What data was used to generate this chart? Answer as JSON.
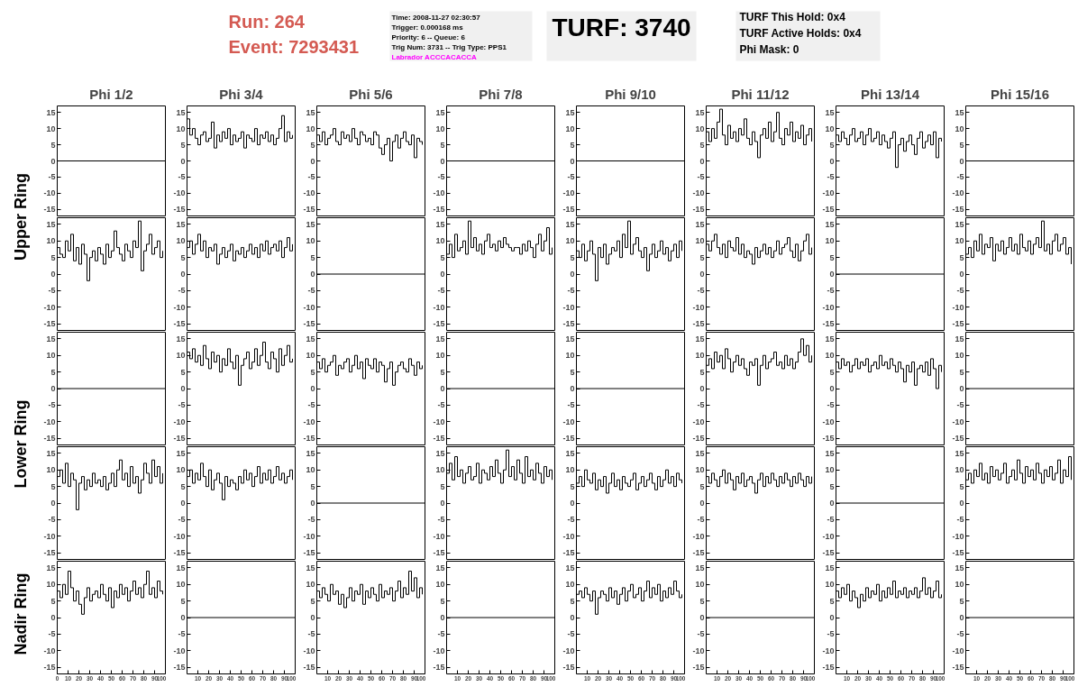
{
  "chart_data": [
    {
      "type": "step",
      "title": "Phi 1/2",
      "annotations": [
        "Run:    264",
        "Event: 7293431",
        "Time: 2008-11-27 02:30:57",
        "Trigger: 0.000168 ms",
        "Priority: 6 -- Queue: 6",
        "Trig Num: 3731 -- Trig Type: PPS1",
        "Labrador ACCCACACCA",
        "TURF: 3740",
        "TURF This Hold: 0x4",
        "TURF Active Holds: 0x4",
        "Phi Mask: 0",
        "Upper Ring",
        "Lower Ring",
        "Nadir Ring"
      ],
      "x": [
        0,
        100
      ],
      "values": [
        0,
        0
      ],
      "color": "#000000",
      "xlim": [
        0,
        100
      ],
      "ylim": [
        -17,
        17
      ],
      "yticks": [
        -15,
        -10,
        -5,
        0,
        5,
        10,
        15
      ],
      "tick_labels": "y"
    },
    {
      "type": "step",
      "title": "Phi 3/4",
      "x": [
        0,
        2.5,
        5,
        7.5,
        10,
        12.5,
        15,
        17.5,
        20,
        22.5,
        25,
        27.5,
        30,
        32.5,
        35,
        37.5,
        40,
        42.5,
        45,
        47.5,
        50,
        52.5,
        55,
        57.5,
        60,
        62.5,
        65,
        67.5,
        70,
        72.5,
        75,
        77.5,
        80,
        82.5,
        85,
        87.5,
        90,
        92.5,
        95,
        97.5
      ],
      "values": [
        13,
        8,
        10,
        7,
        5,
        8,
        9,
        6,
        7,
        12,
        4,
        8,
        6,
        9,
        7,
        10,
        5,
        8,
        6,
        7,
        9,
        4,
        8,
        7,
        6,
        10,
        5,
        8,
        7,
        9,
        6,
        8,
        5,
        7,
        10,
        14,
        6,
        9,
        7,
        8
      ],
      "color": "#000000",
      "xlim": [
        0,
        100
      ],
      "ylim": [
        -17,
        17
      ],
      "yticks": [
        -15,
        -10,
        -5,
        0,
        5,
        10,
        15
      ],
      "tick_labels": "y"
    },
    {
      "type": "step",
      "title": "Phi 5/6",
      "x": [
        0,
        2.5,
        5,
        7.5,
        10,
        12.5,
        15,
        17.5,
        20,
        22.5,
        25,
        27.5,
        30,
        32.5,
        35,
        37.5,
        40,
        42.5,
        45,
        47.5,
        50,
        52.5,
        55,
        57.5,
        60,
        62.5,
        65,
        67.5,
        70,
        72.5,
        75,
        77.5,
        80,
        82.5,
        85,
        87.5,
        90,
        92.5,
        95,
        97.5
      ],
      "values": [
        8,
        6,
        9,
        5,
        7,
        8,
        10,
        6,
        5,
        9,
        7,
        8,
        6,
        10,
        7,
        5,
        9,
        8,
        6,
        7,
        5,
        9,
        8,
        4,
        2,
        5,
        7,
        0,
        6,
        8,
        4,
        7,
        9,
        6,
        5,
        8,
        1,
        7,
        6,
        5
      ],
      "color": "#000000",
      "xlim": [
        0,
        100
      ],
      "ylim": [
        -17,
        17
      ],
      "yticks": [
        -15,
        -10,
        -5,
        0,
        5,
        10,
        15
      ],
      "tick_labels": "y"
    },
    {
      "type": "step",
      "title": "Phi 7/8",
      "x": [
        0,
        100
      ],
      "values": [
        0,
        0
      ],
      "color": "#000000",
      "xlim": [
        0,
        100
      ],
      "ylim": [
        -17,
        17
      ],
      "yticks": [
        -15,
        -10,
        -5,
        0,
        5,
        10,
        15
      ],
      "tick_labels": "y"
    },
    {
      "type": "step",
      "title": "Phi 9/10",
      "x": [
        0,
        100
      ],
      "values": [
        0,
        0
      ],
      "color": "#000000",
      "xlim": [
        0,
        100
      ],
      "ylim": [
        -17,
        17
      ],
      "yticks": [
        -15,
        -10,
        -5,
        0,
        5,
        10,
        15
      ],
      "tick_labels": "y"
    },
    {
      "type": "step",
      "title": "Phi 11/12",
      "x": [
        0,
        2.5,
        5,
        7.5,
        10,
        12.5,
        15,
        17.5,
        20,
        22.5,
        25,
        27.5,
        30,
        32.5,
        35,
        37.5,
        40,
        42.5,
        45,
        47.5,
        50,
        52.5,
        55,
        57.5,
        60,
        62.5,
        65,
        67.5,
        70,
        72.5,
        75,
        77.5,
        80,
        82.5,
        85,
        87.5,
        90,
        92.5,
        95,
        97.5
      ],
      "values": [
        9,
        6,
        10,
        7,
        12,
        16,
        8,
        5,
        11,
        7,
        9,
        6,
        10,
        8,
        13,
        7,
        5,
        9,
        6,
        1,
        8,
        10,
        7,
        12,
        6,
        9,
        15,
        7,
        5,
        10,
        8,
        12,
        6,
        9,
        7,
        11,
        5,
        8,
        10,
        6
      ],
      "color": "#000000",
      "xlim": [
        0,
        100
      ],
      "ylim": [
        -17,
        17
      ],
      "yticks": [
        -15,
        -10,
        -5,
        0,
        5,
        10,
        15
      ],
      "tick_labels": "y"
    },
    {
      "type": "step",
      "title": "Phi 13/14",
      "x": [
        0,
        2.5,
        5,
        7.5,
        10,
        12.5,
        15,
        17.5,
        20,
        22.5,
        25,
        27.5,
        30,
        32.5,
        35,
        37.5,
        40,
        42.5,
        45,
        47.5,
        50,
        52.5,
        55,
        57.5,
        60,
        62.5,
        65,
        67.5,
        70,
        72.5,
        75,
        77.5,
        80,
        82.5,
        85,
        87.5,
        90,
        92.5,
        95,
        97.5
      ],
      "values": [
        8,
        6,
        9,
        7,
        5,
        8,
        10,
        6,
        7,
        9,
        5,
        8,
        10,
        6,
        7,
        9,
        5,
        8,
        6,
        4,
        7,
        9,
        -2,
        5,
        7,
        3,
        6,
        8,
        5,
        2,
        7,
        9,
        4,
        6,
        8,
        5,
        9,
        1,
        7,
        6
      ],
      "color": "#000000",
      "xlim": [
        0,
        100
      ],
      "ylim": [
        -17,
        17
      ],
      "yticks": [
        -15,
        -10,
        -5,
        0,
        5,
        10,
        15
      ],
      "tick_labels": "y"
    },
    {
      "type": "step",
      "title": "Phi 15/16",
      "x": [
        0,
        100
      ],
      "values": [
        0,
        0
      ],
      "color": "#000000",
      "xlim": [
        0,
        100
      ],
      "ylim": [
        -17,
        17
      ],
      "yticks": [
        -15,
        -10,
        -5,
        0,
        5,
        10,
        15
      ],
      "tick_labels": "y"
    },
    {
      "type": "step",
      "x": [
        0,
        2.5,
        5,
        7.5,
        10,
        12.5,
        15,
        17.5,
        20,
        22.5,
        25,
        27.5,
        30,
        32.5,
        35,
        37.5,
        40,
        42.5,
        45,
        47.5,
        50,
        52.5,
        55,
        57.5,
        60,
        62.5,
        65,
        67.5,
        70,
        72.5,
        75,
        77.5,
        80,
        82.5,
        85,
        87.5,
        90,
        92.5,
        95,
        97.5
      ],
      "values": [
        8,
        6,
        5,
        10,
        7,
        12,
        4,
        8,
        3,
        9,
        6,
        -2,
        5,
        7,
        4,
        8,
        6,
        3,
        9,
        5,
        7,
        13,
        8,
        6,
        4,
        9,
        7,
        5,
        10,
        8,
        16,
        1,
        7,
        9,
        12,
        6,
        8,
        10,
        5,
        7
      ],
      "color": "#000000",
      "xlim": [
        0,
        100
      ],
      "ylim": [
        -17,
        17
      ],
      "yticks": [
        -15,
        -10,
        -5,
        0,
        5,
        10,
        15
      ],
      "tick_labels": "y"
    },
    {
      "type": "step",
      "x": [
        0,
        2.5,
        5,
        7.5,
        10,
        12.5,
        15,
        17.5,
        20,
        22.5,
        25,
        27.5,
        30,
        32.5,
        35,
        37.5,
        40,
        42.5,
        45,
        47.5,
        50,
        52.5,
        55,
        57.5,
        60,
        62.5,
        65,
        67.5,
        70,
        72.5,
        75,
        77.5,
        80,
        82.5,
        85,
        87.5,
        90,
        92.5,
        95,
        97.5
      ],
      "values": [
        8,
        10,
        6,
        9,
        12,
        7,
        10,
        5,
        8,
        7,
        9,
        3,
        6,
        8,
        5,
        7,
        9,
        4,
        7,
        6,
        8,
        5,
        7,
        9,
        6,
        8,
        5,
        9,
        7,
        10,
        6,
        8,
        9,
        7,
        10,
        5,
        8,
        11,
        7,
        9
      ],
      "color": "#000000",
      "xlim": [
        0,
        100
      ],
      "ylim": [
        -17,
        17
      ],
      "yticks": [
        -15,
        -10,
        -5,
        0,
        5,
        10,
        15
      ],
      "tick_labels": "y"
    },
    {
      "type": "step",
      "x": [
        0,
        100
      ],
      "values": [
        0,
        0
      ],
      "color": "#000000",
      "xlim": [
        0,
        100
      ],
      "ylim": [
        -17,
        17
      ],
      "yticks": [
        -15,
        -10,
        -5,
        0,
        5,
        10,
        15
      ],
      "tick_labels": "y"
    },
    {
      "type": "step",
      "x": [
        0,
        2.5,
        5,
        7.5,
        10,
        12.5,
        15,
        17.5,
        20,
        22.5,
        25,
        27.5,
        30,
        32.5,
        35,
        37.5,
        40,
        42.5,
        45,
        47.5,
        50,
        52.5,
        55,
        57.5,
        60,
        62.5,
        65,
        67.5,
        70,
        72.5,
        75,
        77.5,
        80,
        82.5,
        85,
        87.5,
        90,
        92.5,
        95,
        97.5
      ],
      "values": [
        6,
        9,
        5,
        12,
        7,
        8,
        10,
        6,
        16,
        8,
        11,
        7,
        9,
        6,
        10,
        12,
        8,
        9,
        7,
        10,
        8,
        11,
        9,
        8,
        7,
        8,
        8,
        6,
        9,
        7,
        10,
        8,
        5,
        9,
        12,
        7,
        10,
        14,
        6,
        8
      ],
      "color": "#000000",
      "xlim": [
        0,
        100
      ],
      "ylim": [
        -17,
        17
      ],
      "yticks": [
        -15,
        -10,
        -5,
        0,
        5,
        10,
        15
      ],
      "tick_labels": "y"
    },
    {
      "type": "step",
      "x": [
        0,
        2.5,
        5,
        7.5,
        10,
        12.5,
        15,
        17.5,
        20,
        22.5,
        25,
        27.5,
        30,
        32.5,
        35,
        37.5,
        40,
        42.5,
        45,
        47.5,
        50,
        52.5,
        55,
        57.5,
        60,
        62.5,
        65,
        67.5,
        70,
        72.5,
        75,
        77.5,
        80,
        82.5,
        85,
        87.5,
        90,
        92.5,
        95,
        97.5
      ],
      "values": [
        7,
        5,
        9,
        4,
        7,
        10,
        6,
        -2,
        8,
        5,
        9,
        3,
        6,
        8,
        7,
        10,
        5,
        12,
        8,
        16,
        6,
        9,
        11,
        7,
        5,
        8,
        1,
        6,
        9,
        5,
        7,
        10,
        6,
        8,
        4,
        7,
        9,
        5,
        10,
        7
      ],
      "color": "#000000",
      "xlim": [
        0,
        100
      ],
      "ylim": [
        -17,
        17
      ],
      "yticks": [
        -15,
        -10,
        -5,
        0,
        5,
        10,
        15
      ],
      "tick_labels": "y"
    },
    {
      "type": "step",
      "x": [
        0,
        2.5,
        5,
        7.5,
        10,
        12.5,
        15,
        17.5,
        20,
        22.5,
        25,
        27.5,
        30,
        32.5,
        35,
        37.5,
        40,
        42.5,
        45,
        47.5,
        50,
        52.5,
        55,
        57.5,
        60,
        62.5,
        65,
        67.5,
        70,
        72.5,
        75,
        77.5,
        80,
        82.5,
        85,
        87.5,
        90,
        92.5,
        95,
        97.5
      ],
      "values": [
        9,
        7,
        10,
        12,
        8,
        6,
        9,
        5,
        10,
        8,
        7,
        11,
        6,
        9,
        5,
        7,
        6,
        3,
        8,
        5,
        7,
        9,
        6,
        8,
        5,
        7,
        10,
        6,
        8,
        9,
        11,
        7,
        5,
        9,
        4,
        7,
        10,
        12,
        6,
        8
      ],
      "color": "#000000",
      "xlim": [
        0,
        100
      ],
      "ylim": [
        -17,
        17
      ],
      "yticks": [
        -15,
        -10,
        -5,
        0,
        5,
        10,
        15
      ],
      "tick_labels": "y"
    },
    {
      "type": "step",
      "x": [
        0,
        100
      ],
      "values": [
        0,
        0
      ],
      "color": "#000000",
      "xlim": [
        0,
        100
      ],
      "ylim": [
        -17,
        17
      ],
      "yticks": [
        -15,
        -10,
        -5,
        0,
        5,
        10,
        15
      ],
      "tick_labels": "y"
    },
    {
      "type": "step",
      "x": [
        0,
        2.5,
        5,
        7.5,
        10,
        12.5,
        15,
        17.5,
        20,
        22.5,
        25,
        27.5,
        30,
        32.5,
        35,
        37.5,
        40,
        42.5,
        45,
        47.5,
        50,
        52.5,
        55,
        57.5,
        60,
        62.5,
        65,
        67.5,
        70,
        72.5,
        75,
        77.5,
        80,
        82.5,
        85,
        87.5,
        90,
        92.5,
        95,
        97.5
      ],
      "values": [
        6,
        8,
        5,
        10,
        7,
        12,
        6,
        9,
        8,
        11,
        4,
        9,
        7,
        10,
        6,
        8,
        11,
        7,
        9,
        6,
        12,
        8,
        7,
        10,
        6,
        9,
        11,
        8,
        16,
        7,
        9,
        6,
        10,
        12,
        7,
        9,
        11,
        6,
        8,
        3
      ],
      "color": "#000000",
      "xlim": [
        0,
        100
      ],
      "ylim": [
        -17,
        17
      ],
      "yticks": [
        -15,
        -10,
        -5,
        0,
        5,
        10,
        15
      ],
      "tick_labels": "y"
    },
    {
      "type": "step",
      "x": [
        0,
        100
      ],
      "values": [
        0,
        0
      ],
      "color": "#000000",
      "xlim": [
        0,
        100
      ],
      "ylim": [
        -17,
        17
      ],
      "yticks": [
        -15,
        -10,
        -5,
        0,
        5,
        10,
        15
      ],
      "tick_labels": "y"
    },
    {
      "type": "step",
      "x": [
        0,
        2.5,
        5,
        7.5,
        10,
        12.5,
        15,
        17.5,
        20,
        22.5,
        25,
        27.5,
        30,
        32.5,
        35,
        37.5,
        40,
        42.5,
        45,
        47.5,
        50,
        52.5,
        55,
        57.5,
        60,
        62.5,
        65,
        67.5,
        70,
        72.5,
        75,
        77.5,
        80,
        82.5,
        85,
        87.5,
        90,
        92.5,
        95,
        97.5
      ],
      "values": [
        11,
        9,
        12,
        8,
        10,
        7,
        13,
        9,
        6,
        11,
        8,
        10,
        5,
        9,
        7,
        12,
        8,
        6,
        10,
        1,
        7,
        9,
        11,
        6,
        8,
        12,
        7,
        10,
        14,
        8,
        6,
        11,
        9,
        5,
        12,
        7,
        10,
        13,
        8,
        9
      ],
      "color": "#000000",
      "xlim": [
        0,
        100
      ],
      "ylim": [
        -17,
        17
      ],
      "yticks": [
        -15,
        -10,
        -5,
        0,
        5,
        10,
        15
      ],
      "tick_labels": "y"
    },
    {
      "type": "step",
      "x": [
        0,
        2.5,
        5,
        7.5,
        10,
        12.5,
        15,
        17.5,
        20,
        22.5,
        25,
        27.5,
        30,
        32.5,
        35,
        37.5,
        40,
        42.5,
        45,
        47.5,
        50,
        52.5,
        55,
        57.5,
        60,
        62.5,
        65,
        67.5,
        70,
        72.5,
        75,
        77.5,
        80,
        82.5,
        85,
        87.5,
        90,
        92.5,
        95,
        97.5
      ],
      "values": [
        8,
        6,
        9,
        5,
        7,
        8,
        10,
        4,
        7,
        6,
        8,
        9,
        5,
        7,
        10,
        6,
        8,
        3,
        9,
        7,
        6,
        9,
        5,
        8,
        7,
        2,
        6,
        8,
        1,
        5,
        7,
        8,
        6,
        5,
        9,
        7,
        4,
        8,
        6,
        7
      ],
      "color": "#000000",
      "xlim": [
        0,
        100
      ],
      "ylim": [
        -17,
        17
      ],
      "yticks": [
        -15,
        -10,
        -5,
        0,
        5,
        10,
        15
      ],
      "tick_labels": "y"
    },
    {
      "type": "step",
      "x": [
        0,
        100
      ],
      "values": [
        0,
        0
      ],
      "color": "#000000",
      "xlim": [
        0,
        100
      ],
      "ylim": [
        -17,
        17
      ],
      "yticks": [
        -15,
        -10,
        -5,
        0,
        5,
        10,
        15
      ],
      "tick_labels": "y"
    },
    {
      "type": "step",
      "x": [
        0,
        100
      ],
      "values": [
        0,
        0
      ],
      "color": "#000000",
      "xlim": [
        0,
        100
      ],
      "ylim": [
        -17,
        17
      ],
      "yticks": [
        -15,
        -10,
        -5,
        0,
        5,
        10,
        15
      ],
      "tick_labels": "y"
    },
    {
      "type": "step",
      "x": [
        0,
        2.5,
        5,
        7.5,
        10,
        12.5,
        15,
        17.5,
        20,
        22.5,
        25,
        27.5,
        30,
        32.5,
        35,
        37.5,
        40,
        42.5,
        45,
        47.5,
        50,
        52.5,
        55,
        57.5,
        60,
        62.5,
        65,
        67.5,
        70,
        72.5,
        75,
        77.5,
        80,
        82.5,
        85,
        87.5,
        90,
        92.5,
        95,
        97.5
      ],
      "values": [
        7,
        9,
        6,
        11,
        8,
        10,
        6,
        12,
        9,
        5,
        8,
        10,
        7,
        9,
        6,
        4,
        8,
        7,
        9,
        1,
        7,
        10,
        6,
        8,
        9,
        11,
        7,
        8,
        6,
        10,
        7,
        9,
        6,
        8,
        11,
        15,
        10,
        13,
        8,
        10
      ],
      "color": "#000000",
      "xlim": [
        0,
        100
      ],
      "ylim": [
        -17,
        17
      ],
      "yticks": [
        -15,
        -10,
        -5,
        0,
        5,
        10,
        15
      ],
      "tick_labels": "y"
    },
    {
      "type": "step",
      "x": [
        0,
        2.5,
        5,
        7.5,
        10,
        12.5,
        15,
        17.5,
        20,
        22.5,
        25,
        27.5,
        30,
        32.5,
        35,
        37.5,
        40,
        42.5,
        45,
        47.5,
        50,
        52.5,
        55,
        57.5,
        60,
        62.5,
        65,
        67.5,
        70,
        72.5,
        75,
        77.5,
        80,
        82.5,
        85,
        87.5,
        90,
        92.5,
        95,
        97.5
      ],
      "values": [
        8,
        6,
        9,
        7,
        8,
        5,
        7,
        9,
        6,
        8,
        7,
        9,
        5,
        7,
        8,
        6,
        10,
        7,
        8,
        6,
        9,
        7,
        5,
        8,
        6,
        2,
        7,
        5,
        8,
        1,
        6,
        7,
        5,
        8,
        4,
        9,
        6,
        0,
        7,
        5
      ],
      "color": "#000000",
      "xlim": [
        0,
        100
      ],
      "ylim": [
        -17,
        17
      ],
      "yticks": [
        -15,
        -10,
        -5,
        0,
        5,
        10,
        15
      ],
      "tick_labels": "y"
    },
    {
      "type": "step",
      "x": [
        0,
        100
      ],
      "values": [
        0,
        0
      ],
      "color": "#000000",
      "xlim": [
        0,
        100
      ],
      "ylim": [
        -17,
        17
      ],
      "yticks": [
        -15,
        -10,
        -5,
        0,
        5,
        10,
        15
      ],
      "tick_labels": "y"
    },
    {
      "type": "step",
      "x": [
        0,
        2.5,
        5,
        7.5,
        10,
        12.5,
        15,
        17.5,
        20,
        22.5,
        25,
        27.5,
        30,
        32.5,
        35,
        37.5,
        40,
        42.5,
        45,
        47.5,
        50,
        52.5,
        55,
        57.5,
        60,
        62.5,
        65,
        67.5,
        70,
        72.5,
        75,
        77.5,
        80,
        82.5,
        85,
        87.5,
        90,
        92.5,
        95,
        97.5
      ],
      "values": [
        8,
        10,
        6,
        12,
        5,
        9,
        7,
        -2,
        6,
        8,
        4,
        7,
        5,
        9,
        6,
        7,
        5,
        8,
        4,
        6,
        9,
        5,
        10,
        13,
        7,
        9,
        5,
        11,
        6,
        8,
        3,
        7,
        12,
        9,
        6,
        13,
        8,
        11,
        6,
        9
      ],
      "color": "#000000",
      "xlim": [
        0,
        100
      ],
      "ylim": [
        -17,
        17
      ],
      "yticks": [
        -15,
        -10,
        -5,
        0,
        5,
        10,
        15
      ],
      "tick_labels": "y"
    },
    {
      "type": "step",
      "x": [
        0,
        2.5,
        5,
        7.5,
        10,
        12.5,
        15,
        17.5,
        20,
        22.5,
        25,
        27.5,
        30,
        32.5,
        35,
        37.5,
        40,
        42.5,
        45,
        47.5,
        50,
        52.5,
        55,
        57.5,
        60,
        62.5,
        65,
        67.5,
        70,
        72.5,
        75,
        77.5,
        80,
        82.5,
        85,
        87.5,
        90,
        92.5,
        95,
        97.5
      ],
      "values": [
        8,
        10,
        6,
        9,
        7,
        12,
        8,
        5,
        10,
        4,
        7,
        9,
        6,
        1,
        8,
        5,
        7,
        6,
        4,
        8,
        6,
        10,
        7,
        9,
        5,
        8,
        11,
        6,
        9,
        7,
        10,
        6,
        8,
        11,
        7,
        9,
        6,
        8,
        10,
        7
      ],
      "color": "#000000",
      "xlim": [
        0,
        100
      ],
      "ylim": [
        -17,
        17
      ],
      "yticks": [
        -15,
        -10,
        -5,
        0,
        5,
        10,
        15
      ],
      "tick_labels": "y"
    },
    {
      "type": "step",
      "x": [
        0,
        100
      ],
      "values": [
        0,
        0
      ],
      "color": "#000000",
      "xlim": [
        0,
        100
      ],
      "ylim": [
        -17,
        17
      ],
      "yticks": [
        -15,
        -10,
        -5,
        0,
        5,
        10,
        15
      ],
      "tick_labels": "y"
    },
    {
      "type": "step",
      "x": [
        0,
        2.5,
        5,
        7.5,
        10,
        12.5,
        15,
        17.5,
        20,
        22.5,
        25,
        27.5,
        30,
        32.5,
        35,
        37.5,
        40,
        42.5,
        45,
        47.5,
        50,
        52.5,
        55,
        57.5,
        60,
        62.5,
        65,
        67.5,
        70,
        72.5,
        75,
        77.5,
        80,
        82.5,
        85,
        87.5,
        90,
        92.5,
        95,
        97.5
      ],
      "values": [
        9,
        12,
        7,
        14,
        8,
        10,
        6,
        9,
        11,
        7,
        8,
        12,
        6,
        10,
        9,
        7,
        11,
        8,
        13,
        9,
        6,
        10,
        16,
        8,
        11,
        7,
        13,
        9,
        6,
        14,
        8,
        10,
        7,
        12,
        9,
        6,
        11,
        8,
        10,
        7
      ],
      "color": "#000000",
      "xlim": [
        0,
        100
      ],
      "ylim": [
        -17,
        17
      ],
      "yticks": [
        -15,
        -10,
        -5,
        0,
        5,
        10,
        15
      ],
      "tick_labels": "y"
    },
    {
      "type": "step",
      "x": [
        0,
        2.5,
        5,
        7.5,
        10,
        12.5,
        15,
        17.5,
        20,
        22.5,
        25,
        27.5,
        30,
        32.5,
        35,
        37.5,
        40,
        42.5,
        45,
        47.5,
        50,
        52.5,
        55,
        57.5,
        60,
        62.5,
        65,
        67.5,
        70,
        72.5,
        75,
        77.5,
        80,
        82.5,
        85,
        87.5,
        90,
        92.5,
        95,
        97.5
      ],
      "values": [
        6,
        8,
        5,
        10,
        7,
        6,
        9,
        4,
        7,
        5,
        8,
        3,
        6,
        9,
        5,
        7,
        4,
        8,
        6,
        5,
        7,
        9,
        4,
        6,
        8,
        5,
        7,
        9,
        6,
        4,
        8,
        5,
        7,
        10,
        6,
        8,
        5,
        9,
        7,
        6
      ],
      "color": "#000000",
      "xlim": [
        0,
        100
      ],
      "ylim": [
        -17,
        17
      ],
      "yticks": [
        -15,
        -10,
        -5,
        0,
        5,
        10,
        15
      ],
      "tick_labels": "y"
    },
    {
      "type": "step",
      "x": [
        0,
        2.5,
        5,
        7.5,
        10,
        12.5,
        15,
        17.5,
        20,
        22.5,
        25,
        27.5,
        30,
        32.5,
        35,
        37.5,
        40,
        42.5,
        45,
        47.5,
        50,
        52.5,
        55,
        57.5,
        60,
        62.5,
        65,
        67.5,
        70,
        72.5,
        75,
        77.5,
        80,
        82.5,
        85,
        87.5,
        90,
        92.5,
        95,
        97.5
      ],
      "values": [
        8,
        6,
        9,
        7,
        5,
        8,
        10,
        6,
        9,
        7,
        4,
        8,
        6,
        9,
        5,
        7,
        8,
        6,
        3,
        7,
        9,
        5,
        8,
        6,
        9,
        7,
        5,
        8,
        6,
        9,
        7,
        5,
        8,
        6,
        9,
        7,
        5,
        8,
        6,
        8
      ],
      "color": "#000000",
      "xlim": [
        0,
        100
      ],
      "ylim": [
        -17,
        17
      ],
      "yticks": [
        -15,
        -10,
        -5,
        0,
        5,
        10,
        15
      ],
      "tick_labels": "y"
    },
    {
      "type": "step",
      "x": [
        0,
        100
      ],
      "values": [
        0,
        0
      ],
      "color": "#000000",
      "xlim": [
        0,
        100
      ],
      "ylim": [
        -17,
        17
      ],
      "yticks": [
        -15,
        -10,
        -5,
        0,
        5,
        10,
        15
      ],
      "tick_labels": "y"
    },
    {
      "type": "step",
      "x": [
        0,
        2.5,
        5,
        7.5,
        10,
        12.5,
        15,
        17.5,
        20,
        22.5,
        25,
        27.5,
        30,
        32.5,
        35,
        37.5,
        40,
        42.5,
        45,
        47.5,
        50,
        52.5,
        55,
        57.5,
        60,
        62.5,
        65,
        67.5,
        70,
        72.5,
        75,
        77.5,
        80,
        82.5,
        85,
        87.5,
        90,
        92.5,
        95,
        97.5
      ],
      "values": [
        7,
        9,
        6,
        10,
        8,
        12,
        7,
        9,
        6,
        11,
        8,
        10,
        7,
        9,
        12,
        6,
        8,
        10,
        7,
        13,
        9,
        6,
        11,
        8,
        10,
        7,
        12,
        9,
        6,
        10,
        8,
        11,
        7,
        9,
        13,
        6,
        10,
        8,
        14,
        7
      ],
      "color": "#000000",
      "xlim": [
        0,
        100
      ],
      "ylim": [
        -17,
        17
      ],
      "yticks": [
        -15,
        -10,
        -5,
        0,
        5,
        10,
        15
      ],
      "tick_labels": "y"
    },
    {
      "type": "step",
      "x": [
        0,
        2.5,
        5,
        7.5,
        10,
        12.5,
        15,
        17.5,
        20,
        22.5,
        25,
        27.5,
        30,
        32.5,
        35,
        37.5,
        40,
        42.5,
        45,
        47.5,
        50,
        52.5,
        55,
        57.5,
        60,
        62.5,
        65,
        67.5,
        70,
        72.5,
        75,
        77.5,
        80,
        82.5,
        85,
        87.5,
        90,
        92.5,
        95,
        97.5
      ],
      "values": [
        8,
        6,
        10,
        7,
        14,
        9,
        5,
        8,
        4,
        1,
        6,
        9,
        5,
        7,
        8,
        6,
        10,
        7,
        5,
        9,
        3,
        8,
        6,
        10,
        7,
        9,
        5,
        8,
        11,
        7,
        9,
        6,
        10,
        14,
        7,
        9,
        6,
        11,
        8,
        7
      ],
      "color": "#000000",
      "xlim": [
        0,
        100
      ],
      "ylim": [
        -17,
        17
      ],
      "yticks": [
        -15,
        -10,
        -5,
        0,
        5,
        10,
        15
      ],
      "xticks": [
        0,
        10,
        20,
        30,
        40,
        50,
        60,
        70,
        80,
        90,
        100
      ]
    },
    {
      "type": "step",
      "x": [
        0,
        100
      ],
      "values": [
        0,
        0
      ],
      "color": "#000000",
      "xlim": [
        0,
        100
      ],
      "ylim": [
        -17,
        17
      ],
      "yticks": [
        -15,
        -10,
        -5,
        0,
        5,
        10,
        15
      ],
      "xticks": [
        10,
        20,
        30,
        40,
        50,
        60,
        70,
        80,
        90,
        100
      ]
    },
    {
      "type": "step",
      "x": [
        0,
        2.5,
        5,
        7.5,
        10,
        12.5,
        15,
        17.5,
        20,
        22.5,
        25,
        27.5,
        30,
        32.5,
        35,
        37.5,
        40,
        42.5,
        45,
        47.5,
        50,
        52.5,
        55,
        57.5,
        60,
        62.5,
        65,
        67.5,
        70,
        72.5,
        75,
        77.5,
        80,
        82.5,
        85,
        87.5,
        90,
        92.5,
        95,
        97.5
      ],
      "values": [
        8,
        6,
        9,
        7,
        5,
        10,
        7,
        8,
        4,
        7,
        3,
        6,
        9,
        5,
        8,
        7,
        10,
        4,
        8,
        6,
        9,
        7,
        5,
        10,
        6,
        8,
        7,
        9,
        5,
        8,
        11,
        6,
        9,
        7,
        14,
        8,
        12,
        6,
        9,
        7
      ],
      "color": "#000000",
      "xlim": [
        0,
        100
      ],
      "ylim": [
        -17,
        17
      ],
      "yticks": [
        -15,
        -10,
        -5,
        0,
        5,
        10,
        15
      ],
      "xticks": [
        10,
        20,
        30,
        40,
        50,
        60,
        70,
        80,
        90,
        100
      ]
    },
    {
      "type": "step",
      "x": [
        0,
        100
      ],
      "values": [
        0,
        0
      ],
      "color": "#000000",
      "xlim": [
        0,
        100
      ],
      "ylim": [
        -17,
        17
      ],
      "yticks": [
        -15,
        -10,
        -5,
        0,
        5,
        10,
        15
      ],
      "xticks": [
        10,
        20,
        30,
        40,
        50,
        60,
        70,
        80,
        90,
        100
      ]
    },
    {
      "type": "step",
      "x": [
        0,
        2.5,
        5,
        7.5,
        10,
        12.5,
        15,
        17.5,
        20,
        22.5,
        25,
        27.5,
        30,
        32.5,
        35,
        37.5,
        40,
        42.5,
        45,
        47.5,
        50,
        52.5,
        55,
        57.5,
        60,
        62.5,
        65,
        67.5,
        70,
        72.5,
        75,
        77.5,
        80,
        82.5,
        85,
        87.5,
        90,
        92.5,
        95,
        97.5
      ],
      "values": [
        7,
        8,
        6,
        9,
        7,
        5,
        8,
        1,
        6,
        8,
        7,
        5,
        9,
        6,
        8,
        4,
        7,
        9,
        5,
        8,
        10,
        6,
        7,
        9,
        5,
        8,
        11,
        6,
        9,
        7,
        10,
        5,
        8,
        6,
        9,
        7,
        11,
        8,
        6,
        7
      ],
      "color": "#000000",
      "xlim": [
        0,
        100
      ],
      "ylim": [
        -17,
        17
      ],
      "yticks": [
        -15,
        -10,
        -5,
        0,
        5,
        10,
        15
      ],
      "xticks": [
        10,
        20,
        30,
        40,
        50,
        60,
        70,
        80,
        90,
        100
      ]
    },
    {
      "type": "step",
      "x": [
        0,
        100
      ],
      "values": [
        0,
        0
      ],
      "color": "#000000",
      "xlim": [
        0,
        100
      ],
      "ylim": [
        -17,
        17
      ],
      "yticks": [
        -15,
        -10,
        -5,
        0,
        5,
        10,
        15
      ],
      "xticks": [
        10,
        20,
        30,
        40,
        50,
        60,
        70,
        80,
        90,
        100
      ]
    },
    {
      "type": "step",
      "x": [
        0,
        2.5,
        5,
        7.5,
        10,
        12.5,
        15,
        17.5,
        20,
        22.5,
        25,
        27.5,
        30,
        32.5,
        35,
        37.5,
        40,
        42.5,
        45,
        47.5,
        50,
        52.5,
        55,
        57.5,
        60,
        62.5,
        65,
        67.5,
        70,
        72.5,
        75,
        77.5,
        80,
        82.5,
        85,
        87.5,
        90,
        92.5,
        95,
        97.5
      ],
      "values": [
        8,
        6,
        9,
        7,
        10,
        5,
        8,
        6,
        3,
        7,
        5,
        9,
        6,
        8,
        7,
        10,
        5,
        8,
        6,
        9,
        7,
        11,
        6,
        8,
        7,
        9,
        6,
        8,
        7,
        9,
        6,
        8,
        12,
        7,
        9,
        6,
        8,
        11,
        6,
        7
      ],
      "color": "#000000",
      "xlim": [
        0,
        100
      ],
      "ylim": [
        -17,
        17
      ],
      "yticks": [
        -15,
        -10,
        -5,
        0,
        5,
        10,
        15
      ],
      "xticks": [
        10,
        20,
        30,
        40,
        50,
        60,
        70,
        80,
        90,
        100
      ]
    },
    {
      "type": "step",
      "x": [
        0,
        100
      ],
      "values": [
        0,
        0
      ],
      "color": "#000000",
      "xlim": [
        0,
        100
      ],
      "ylim": [
        -17,
        17
      ],
      "yticks": [
        -15,
        -10,
        -5,
        0,
        5,
        10,
        15
      ],
      "xticks": [
        10,
        20,
        30,
        40,
        50,
        60,
        70,
        80,
        90,
        100
      ]
    }
  ]
}
